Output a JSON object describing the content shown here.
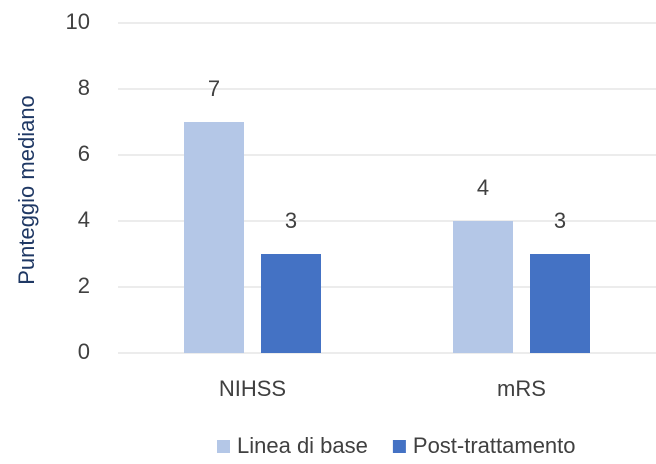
{
  "chart_data": {
    "type": "bar",
    "y_label": "Punteggio mediano",
    "categories": [
      "NIHSS",
      "mRS"
    ],
    "series": [
      {
        "name": "Linea di base",
        "color": "#b4c7e7",
        "values": [
          7,
          4
        ]
      },
      {
        "name": "Post-trattamento",
        "color": "#4472c4",
        "values": [
          3,
          3
        ]
      }
    ],
    "ylim": [
      0,
      10
    ],
    "yticks": [
      0,
      2,
      4,
      6,
      8,
      10
    ],
    "grid": true,
    "legend": "bottom"
  }
}
